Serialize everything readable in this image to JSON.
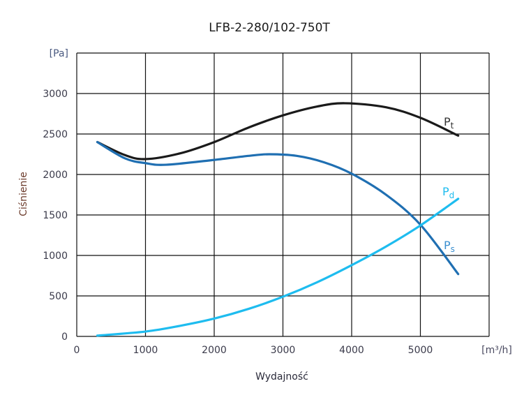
{
  "chart_data": {
    "type": "line",
    "title": "LFB-2-280/102-750T",
    "xlabel": "Wydajność",
    "ylabel": "Ciśnienie",
    "x_unit": "[m³/h]",
    "y_unit": "[Pa]",
    "xlim": [
      0,
      6000
    ],
    "ylim": [
      0,
      3500
    ],
    "xticks": [
      "0",
      "1000",
      "2000",
      "3000",
      "4000",
      "5000"
    ],
    "yticks": [
      "0",
      "500",
      "1000",
      "1500",
      "2000",
      "2500",
      "3000"
    ],
    "grid": true,
    "series": [
      {
        "name": "Pt",
        "main": "P",
        "sub": "t",
        "color": "#1a1a1a",
        "label_color": "#333333",
        "x": [
          300,
          700,
          1000,
          1500,
          2000,
          2500,
          3000,
          3500,
          3900,
          4500,
          5000,
          5550
        ],
        "y": [
          2400,
          2240,
          2190,
          2260,
          2400,
          2580,
          2730,
          2840,
          2880,
          2830,
          2700,
          2480
        ]
      },
      {
        "name": "Ps",
        "main": "P",
        "sub": "s",
        "color": "#1f6fb2",
        "label_color": "#3a8fd0",
        "x": [
          300,
          700,
          1000,
          1300,
          2000,
          2500,
          2800,
          3200,
          3600,
          4000,
          4500,
          5000,
          5550
        ],
        "y": [
          2400,
          2200,
          2140,
          2120,
          2180,
          2230,
          2250,
          2230,
          2150,
          2010,
          1750,
          1380,
          770
        ]
      },
      {
        "name": "Pd",
        "main": "P",
        "sub": "d",
        "color": "#1ebcef",
        "label_color": "#1ebcef",
        "x": [
          300,
          1000,
          1500,
          2000,
          2500,
          3000,
          3500,
          4000,
          4500,
          5000,
          5550
        ],
        "y": [
          10,
          60,
          130,
          220,
          340,
          490,
          670,
          880,
          1110,
          1370,
          1700
        ]
      }
    ]
  }
}
